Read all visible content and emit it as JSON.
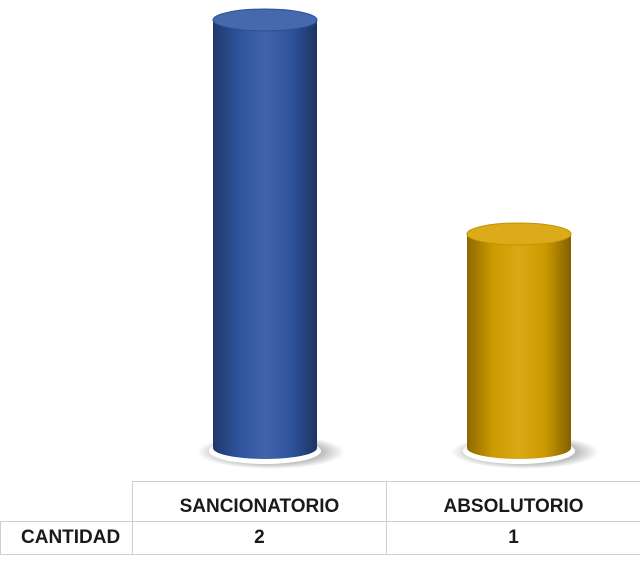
{
  "chart_data": {
    "type": "bar",
    "categories": [
      "SANCIONATORIO",
      "ABSOLUTORIO"
    ],
    "series": [
      {
        "name": "CANTIDAD",
        "values": [
          2,
          1
        ]
      }
    ],
    "colors": [
      "#3157a4",
      "#d7a200"
    ],
    "ylim": [
      0,
      2
    ],
    "grid": false,
    "legend": "none",
    "data_table": true
  },
  "table": {
    "row_label": "CANTIDAD"
  }
}
